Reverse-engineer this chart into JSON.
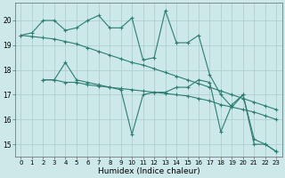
{
  "xlabel": "Humidex (Indice chaleur)",
  "background_color": "#cce8e8",
  "grid_color": "#aacccc",
  "line_color": "#2e7d72",
  "xlim": [
    -0.5,
    23.5
  ],
  "ylim": [
    14.5,
    20.7
  ],
  "xticks": [
    0,
    1,
    2,
    3,
    4,
    5,
    6,
    7,
    8,
    9,
    10,
    11,
    12,
    13,
    14,
    15,
    16,
    17,
    18,
    19,
    20,
    21,
    22,
    23
  ],
  "yticks": [
    15,
    16,
    17,
    18,
    19,
    20
  ],
  "series": [
    {
      "x": [
        0,
        1,
        2,
        3,
        4,
        5,
        6,
        7,
        8,
        9,
        10,
        11,
        12,
        13,
        14,
        15,
        16,
        17,
        18,
        19,
        20,
        21,
        22,
        23
      ],
      "y": [
        19.4,
        19.5,
        20.0,
        20.0,
        19.6,
        19.7,
        20.0,
        20.2,
        19.7,
        19.7,
        20.1,
        18.4,
        18.5,
        20.4,
        19.1,
        19.1,
        19.4,
        17.8,
        17.0,
        16.5,
        17.0,
        15.0,
        15.0,
        14.7
      ]
    },
    {
      "x": [
        0,
        1,
        2,
        3,
        4,
        5,
        6,
        7,
        8,
        9,
        10,
        11,
        12,
        13,
        14,
        15,
        16,
        17,
        18,
        19,
        20,
        21,
        22,
        23
      ],
      "y": [
        19.4,
        19.35,
        19.3,
        19.25,
        19.15,
        19.05,
        18.9,
        18.75,
        18.6,
        18.45,
        18.3,
        18.2,
        18.05,
        17.9,
        17.75,
        17.6,
        17.45,
        17.3,
        17.15,
        17.0,
        16.85,
        16.7,
        16.55,
        16.4
      ]
    },
    {
      "x": [
        2,
        3,
        4,
        5,
        6,
        7,
        8,
        9,
        10,
        11,
        12,
        13,
        14,
        15,
        16,
        17,
        18,
        19,
        20,
        21,
        22,
        23
      ],
      "y": [
        17.6,
        17.6,
        17.5,
        17.5,
        17.4,
        17.35,
        17.3,
        17.25,
        17.2,
        17.15,
        17.1,
        17.05,
        17.0,
        16.95,
        16.85,
        16.75,
        16.6,
        16.5,
        16.4,
        16.3,
        16.15,
        16.0
      ]
    },
    {
      "comment": "starts at x=2 ~17.6, jagged: dips at x=10~15.4, peak at x=14~17.3, dips x=18~15.5, ends x=23~14.7",
      "x": [
        2,
        3,
        4,
        5,
        6,
        7,
        8,
        9,
        10,
        11,
        12,
        13,
        14,
        15,
        16,
        17,
        18,
        19,
        20,
        21,
        22,
        23
      ],
      "y": [
        17.6,
        17.6,
        18.3,
        17.6,
        17.5,
        17.4,
        17.3,
        17.2,
        15.4,
        17.0,
        17.1,
        17.1,
        17.3,
        17.3,
        17.6,
        17.5,
        15.5,
        16.6,
        17.0,
        15.2,
        15.0,
        14.7
      ]
    }
  ]
}
